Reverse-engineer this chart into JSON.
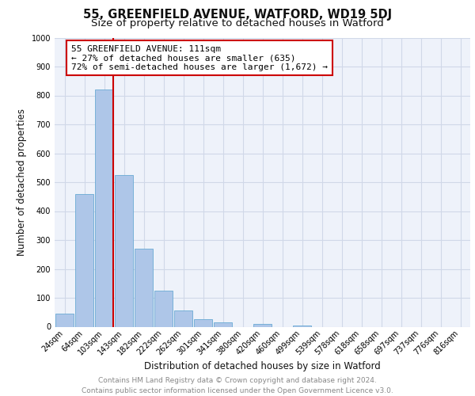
{
  "title": "55, GREENFIELD AVENUE, WATFORD, WD19 5DJ",
  "subtitle": "Size of property relative to detached houses in Watford",
  "xlabel": "Distribution of detached houses by size in Watford",
  "ylabel": "Number of detached properties",
  "bin_labels": [
    "24sqm",
    "64sqm",
    "103sqm",
    "143sqm",
    "182sqm",
    "222sqm",
    "262sqm",
    "301sqm",
    "341sqm",
    "380sqm",
    "420sqm",
    "460sqm",
    "499sqm",
    "539sqm",
    "578sqm",
    "618sqm",
    "658sqm",
    "697sqm",
    "737sqm",
    "776sqm",
    "816sqm"
  ],
  "bar_values": [
    45,
    460,
    820,
    525,
    270,
    125,
    55,
    25,
    15,
    0,
    10,
    0,
    5,
    0,
    0,
    0,
    0,
    0,
    0,
    0,
    0
  ],
  "bar_color": "#aec6e8",
  "bar_edge_color": "#6aaad4",
  "vline_color": "#cc0000",
  "annotation_text": "55 GREENFIELD AVENUE: 111sqm\n← 27% of detached houses are smaller (635)\n72% of semi-detached houses are larger (1,672) →",
  "annotation_box_color": "#ffffff",
  "annotation_box_edge_color": "#cc0000",
  "ylim": [
    0,
    1000
  ],
  "yticks": [
    0,
    100,
    200,
    300,
    400,
    500,
    600,
    700,
    800,
    900,
    1000
  ],
  "grid_color": "#d0d8e8",
  "bg_color": "#eef2fa",
  "footer_line1": "Contains HM Land Registry data © Crown copyright and database right 2024.",
  "footer_line2": "Contains public sector information licensed under the Open Government Licence v3.0.",
  "title_fontsize": 10.5,
  "subtitle_fontsize": 9.5,
  "axis_label_fontsize": 8.5,
  "tick_fontsize": 7,
  "annotation_fontsize": 8,
  "footer_fontsize": 6.5
}
